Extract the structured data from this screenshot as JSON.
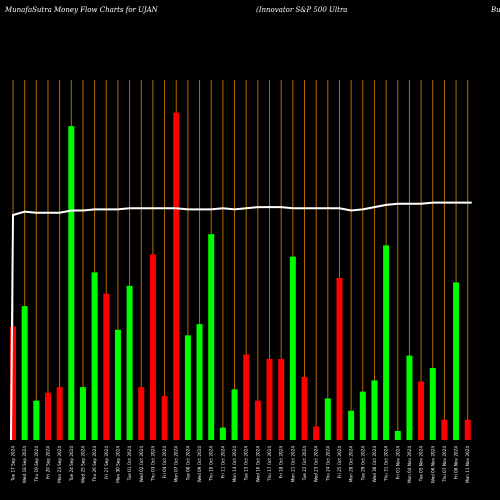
{
  "header": {
    "left": "MunafaSutra  Money Flow  Charts for UJAN",
    "center": "(Innovator S&P 500   Ultra",
    "right": "Bu"
  },
  "chart_data": {
    "type": "bar",
    "title": "MunafaSutra  Money Flow  Charts for UJAN",
    "series": [
      {
        "values": [
          101,
          119,
          35,
          42,
          47,
          279,
          47,
          149,
          130,
          98,
          137,
          47,
          165,
          39,
          291,
          93,
          103,
          183,
          11,
          45,
          76,
          35,
          72,
          72,
          163,
          56,
          12,
          37,
          144,
          26,
          43,
          53,
          173,
          8,
          75,
          52,
          64,
          18,
          140,
          18
        ],
        "colors": [
          "red",
          "green",
          "green",
          "red",
          "red",
          "green",
          "green",
          "green",
          "red",
          "green",
          "green",
          "red",
          "red",
          "red",
          "red",
          "green",
          "green",
          "green",
          "green",
          "green",
          "red",
          "red",
          "red",
          "red",
          "green",
          "red",
          "red",
          "green",
          "red",
          "green",
          "green",
          "green",
          "green",
          "green",
          "green",
          "red",
          "green",
          "red",
          "green",
          "red"
        ]
      },
      {
        "type": "line",
        "values": [
          200,
          203,
          202,
          202,
          202,
          204,
          204,
          205,
          205,
          205,
          206,
          206,
          206,
          206,
          206,
          205,
          205,
          205,
          206,
          205,
          206,
          207,
          207,
          207,
          206,
          206,
          206,
          206,
          206,
          204,
          205,
          207,
          209,
          210,
          210,
          210,
          211,
          211,
          211,
          211
        ]
      }
    ],
    "categories": [
      "Tue 17 Sep 2024",
      "Wed 18 Sep 2024",
      "Thu 19 Sep 2024",
      "Fri 20 Sep 2024",
      "Mon 23 Sep 2024",
      "Tue 24 Sep 2024",
      "Wed 25 Sep 2024",
      "Thu 26 Sep 2024",
      "Fri 27 Sep 2024",
      "Mon 30 Sep 2024",
      "Tue 01 Oct 2024",
      "Wed 02 Oct 2024",
      "Thu 03 Oct 2024",
      "Fri 04 Oct 2024",
      "Mon 07 Oct 2024",
      "Tue 08 Oct 2024",
      "Wed 09 Oct 2024",
      "Thu 10 Oct 2024",
      "Fri 11 Oct 2024",
      "Mon 14 Oct 2024",
      "Tue 15 Oct 2024",
      "Wed 16 Oct 2024",
      "Thu 17 Oct 2024",
      "Fri 18 Oct 2024",
      "Mon 21 Oct 2024",
      "Tue 22 Oct 2024",
      "Wed 23 Oct 2024",
      "Thu 24 Oct 2024",
      "Fri 25 Oct 2024",
      "Mon 28 Oct 2024",
      "Tue 29 Oct 2024",
      "Wed 30 Oct 2024",
      "Thu 31 Oct 2024",
      "Fri 01 Nov 2024",
      "Mon 04 Nov 2024",
      "Tue 05 Nov 2024",
      "Wed 06 Nov 2024",
      "Thu 07 Nov 2024",
      "Fri 08 Nov 2024",
      "Mon 11 Nov 2024"
    ],
    "ylim": [
      0,
      320
    ],
    "grid": "vertical",
    "colors": {
      "background": "#000000",
      "grid": "#b86a00",
      "up": "#00ff00",
      "down": "#ff0000",
      "line": "#ffffff",
      "label": "#ffffff"
    }
  }
}
